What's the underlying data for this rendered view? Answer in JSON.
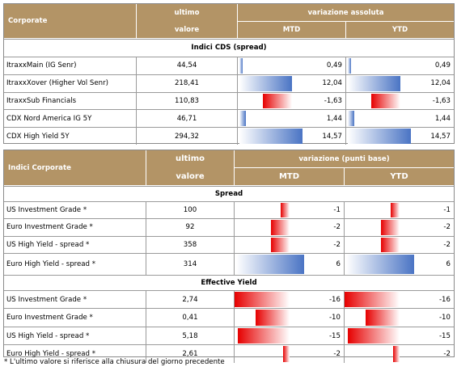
{
  "table1": {
    "header": {
      "label": "Corporate",
      "ultimo": "ultimo",
      "valore": "valore",
      "group": "variazione assoluta",
      "mtd": "MTD",
      "ytd": "YTD"
    },
    "section": "Indici CDS (spread)",
    "rows": [
      {
        "name": "ItraxxMain (IG Senr)",
        "value": "44,54",
        "mtd": "0,49",
        "ytd": "0,49",
        "mtd_num": 0.49,
        "ytd_num": 0.49
      },
      {
        "name": "ItraxxXover (Higher Vol Senr)",
        "value": "218,41",
        "mtd": "12,04",
        "ytd": "12,04",
        "mtd_num": 12.04,
        "ytd_num": 12.04
      },
      {
        "name": "ItraxxSub Financials",
        "value": "110,83",
        "mtd": "-1,63",
        "ytd": "-1,63",
        "mtd_num": -1.63,
        "ytd_num": -1.63
      },
      {
        "name": "CDX Nord America IG 5Y",
        "value": "46,71",
        "mtd": "1,44",
        "ytd": "1,44",
        "mtd_num": 1.44,
        "ytd_num": 1.44
      },
      {
        "name": "CDX High Yield 5Y",
        "value": "294,32",
        "mtd": "14,57",
        "ytd": "14,57",
        "mtd_num": 14.57,
        "ytd_num": 14.57
      }
    ]
  },
  "table2": {
    "header": {
      "label": "Indici Corporate",
      "ultimo": "ultimo",
      "valore": "valore",
      "group": "variazione (punti base)",
      "mtd": "MTD",
      "ytd": "YTD"
    },
    "sections": [
      {
        "title": "Spread",
        "rows": [
          {
            "name": "US Investment Grade *",
            "value": "100",
            "mtd": "-1",
            "ytd": "-1",
            "mtd_num": -1,
            "ytd_num": -1
          },
          {
            "name": "Euro Investment Grade *",
            "value": "92",
            "mtd": "-2",
            "ytd": "-2",
            "mtd_num": -2,
            "ytd_num": -2
          },
          {
            "name": "US High Yield - spread *",
            "value": "358",
            "mtd": "-2",
            "ytd": "-2",
            "mtd_num": -2,
            "ytd_num": -2
          },
          {
            "name": "Euro High Yield - spread *",
            "value": "314",
            "mtd": "6",
            "ytd": "6",
            "mtd_num": 6,
            "ytd_num": 6
          }
        ]
      },
      {
        "title": "Effective Yield",
        "rows": [
          {
            "name": "US Investment Grade *",
            "value": "2,74",
            "mtd": "-16",
            "ytd": "-16",
            "mtd_num": -16,
            "ytd_num": -16
          },
          {
            "name": "Euro Investment Grade *",
            "value": "0,41",
            "mtd": "-10",
            "ytd": "-10",
            "mtd_num": -10,
            "ytd_num": -10
          },
          {
            "name": "US High Yield - spread *",
            "value": "5,18",
            "mtd": "-15",
            "ytd": "-15",
            "mtd_num": -15,
            "ytd_num": -15
          },
          {
            "name": "Euro High Yield - spread *",
            "value": "2,61",
            "mtd": "-2",
            "ytd": "-2",
            "mtd_num": -2,
            "ytd_num": -2
          }
        ]
      }
    ]
  },
  "footnote": "* L'ultimo valore si riferisce alla chiusura del giorno precedente",
  "colors": {
    "header": "#b39466",
    "negative": "#e60000",
    "positive": "#4a74c4"
  }
}
